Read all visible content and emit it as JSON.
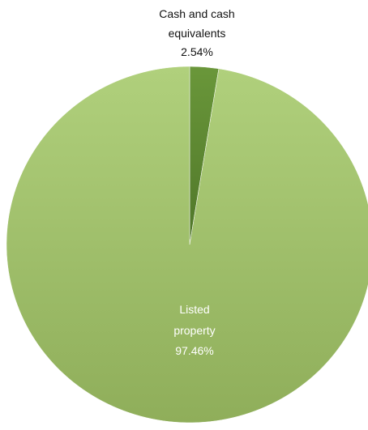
{
  "chart_data": {
    "type": "pie",
    "title": "",
    "start_angle_deg": 0,
    "direction": "clockwise",
    "slices": [
      {
        "name": "Cash and cash equivalents",
        "label_lines": [
          "Cash and cash",
          "equivalents"
        ],
        "value_label": "2.54%",
        "value": 2.54,
        "color": "#5f8a32",
        "label_color": "dark"
      },
      {
        "name": "Listed property",
        "label_lines": [
          "Listed",
          "property"
        ],
        "value_label": "97.46%",
        "value": 97.46,
        "color": "#a3c46d",
        "label_color": "light"
      }
    ]
  }
}
